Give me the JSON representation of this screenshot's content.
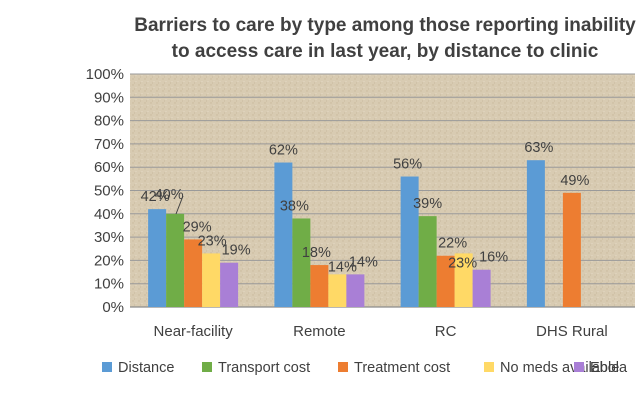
{
  "chart_data": {
    "type": "bar",
    "title_lines": [
      "Barriers to care by type among those reporting inability",
      "to access care in last year, by distance to clinic"
    ],
    "categories": [
      "Near-facility",
      "Remote",
      "RC",
      "DHS Rural"
    ],
    "yticks": [
      "0%",
      "10%",
      "20%",
      "30%",
      "40%",
      "50%",
      "60%",
      "70%",
      "80%",
      "90%",
      "100%"
    ],
    "ylim": [
      0,
      100
    ],
    "series": [
      {
        "name": "Distance",
        "color": "#5b9bd5",
        "values": [
          42,
          62,
          56,
          63
        ],
        "labels": [
          "42%",
          "62%",
          "56%",
          "63%"
        ]
      },
      {
        "name": "Transport cost",
        "color": "#70ad47",
        "values": [
          40,
          38,
          39,
          null
        ],
        "labels": [
          "40%",
          "38%",
          "39%",
          ""
        ]
      },
      {
        "name": "Treatment cost",
        "color": "#ed7d31",
        "values": [
          29,
          18,
          22,
          49
        ],
        "labels": [
          "29%",
          "18%",
          "22%",
          "49%"
        ]
      },
      {
        "name": "No meds available",
        "color": "#ffd966",
        "values": [
          23,
          14,
          23,
          null
        ],
        "labels": [
          "23%",
          "14%",
          "23%",
          ""
        ]
      },
      {
        "name": "Ebola",
        "color": "#a97fd6",
        "values": [
          19,
          14,
          16,
          null
        ],
        "labels": [
          "19%",
          "14%",
          "16%",
          ""
        ]
      }
    ],
    "legend_position": "bottom",
    "plot_background": "#d9ccb3",
    "grid": true
  }
}
